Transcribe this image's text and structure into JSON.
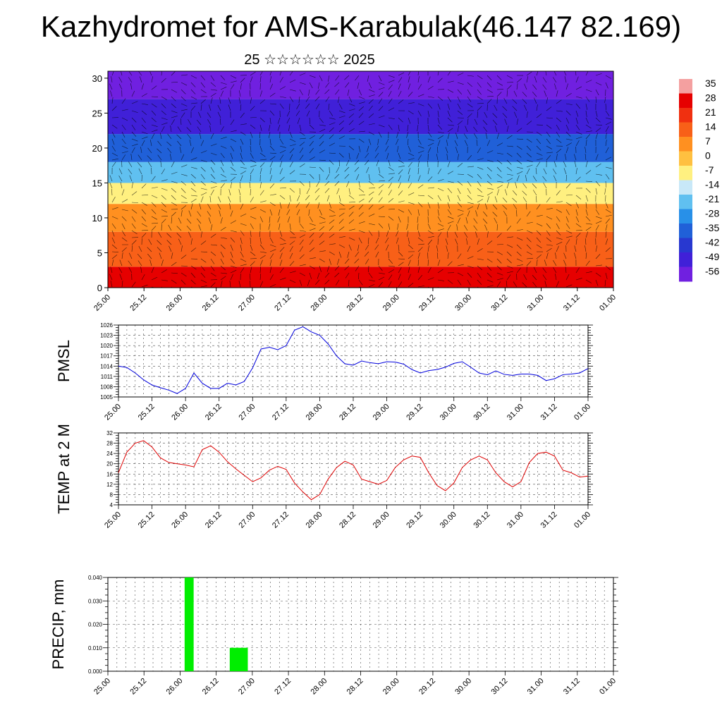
{
  "page": {
    "title": "Kazhydromet for AMS-Karabulak(46.147 82.169)",
    "subtitle": "25 ☆☆☆☆☆☆ 2025"
  },
  "colors": {
    "pmsl_line": "#0000dd",
    "temp_line": "#dd0000",
    "precip_bar": "#00ee00",
    "wind_barb": "#000000",
    "grid": "#000000"
  },
  "chart_data": [
    {
      "type": "heatmap",
      "name": "cross-section",
      "x_ticks": [
        "25.00",
        "25.12",
        "26.00",
        "26.12",
        "27.00",
        "27.12",
        "28.00",
        "28.12",
        "29.00",
        "29.12",
        "30.00",
        "30.12",
        "31.00",
        "31.12",
        "01.00"
      ],
      "y_ticks": [
        "0",
        "5",
        "10",
        "15",
        "20",
        "25",
        "30"
      ],
      "ylim": [
        0,
        31
      ],
      "colorbar_labels": [
        "35",
        "28",
        "21",
        "14",
        "7",
        "0",
        "-7",
        "-14",
        "-21",
        "-28",
        "-35",
        "-42",
        "-49",
        "-56"
      ],
      "colorbar_colors": [
        "#f4a0a0",
        "#e60000",
        "#f03010",
        "#f86018",
        "#ff9020",
        "#ffc040",
        "#fff080",
        "#c8e8f8",
        "#60c0f0",
        "#2890e8",
        "#2060d8",
        "#2838d0",
        "#4020d8",
        "#7020e0"
      ],
      "temperature_layers": [
        {
          "height_from": 0,
          "height_to": 3,
          "value": 28
        },
        {
          "height_from": 3,
          "height_to": 8,
          "value": 18
        },
        {
          "height_from": 8,
          "height_to": 12,
          "value": 7
        },
        {
          "height_from": 12,
          "height_to": 15,
          "value": -7
        },
        {
          "height_from": 15,
          "height_to": 18,
          "value": -21
        },
        {
          "height_from": 18,
          "height_to": 22,
          "value": -35
        },
        {
          "height_from": 22,
          "height_to": 27,
          "value": -49
        },
        {
          "height_from": 27,
          "height_to": 31,
          "value": -56
        }
      ]
    },
    {
      "type": "line",
      "name": "pmsl",
      "ylabel": "PMSL",
      "ylim": [
        1005,
        1026
      ],
      "y_ticks": [
        "1005",
        "1008",
        "1011",
        "1014",
        "1017",
        "1020",
        "1023",
        "1026"
      ],
      "x_ticks": [
        "25.00",
        "25.12",
        "26.00",
        "26.12",
        "27.00",
        "27.12",
        "28.00",
        "28.12",
        "29.00",
        "29.12",
        "30.00",
        "30.12",
        "31.00",
        "31.12",
        "01.00"
      ],
      "x_step_hours": 3,
      "values": [
        1014.0,
        1013.6,
        1012.0,
        1010.0,
        1008.5,
        1007.7,
        1007.0,
        1006.0,
        1007.5,
        1012.0,
        1009.0,
        1007.5,
        1007.5,
        1009.0,
        1008.5,
        1009.5,
        1013.5,
        1019.0,
        1019.5,
        1018.8,
        1020.0,
        1024.5,
        1025.5,
        1024.0,
        1023.0,
        1020.5,
        1017.0,
        1014.7,
        1014.3,
        1015.5,
        1015.0,
        1014.7,
        1015.3,
        1015.2,
        1014.6,
        1013.0,
        1012.0,
        1012.7,
        1013.0,
        1013.7,
        1014.8,
        1015.3,
        1013.7,
        1012.0,
        1011.5,
        1012.6,
        1011.6,
        1011.3,
        1011.7,
        1011.7,
        1011.3,
        1009.8,
        1010.3,
        1011.5,
        1011.7,
        1012.0,
        1013.3
      ]
    },
    {
      "type": "line",
      "name": "temp",
      "ylabel": "TEMP at 2 M",
      "ylim": [
        4,
        32
      ],
      "y_ticks": [
        "4",
        "8",
        "12",
        "16",
        "20",
        "24",
        "28",
        "32"
      ],
      "x_ticks": [
        "25.00",
        "25.12",
        "26.00",
        "26.12",
        "27.00",
        "27.12",
        "28.00",
        "28.12",
        "29.00",
        "29.12",
        "30.00",
        "30.12",
        "31.00",
        "31.12",
        "01.00"
      ],
      "x_step_hours": 3,
      "values": [
        16.5,
        24.5,
        28.0,
        29.0,
        26.5,
        22.3,
        20.5,
        20.0,
        19.5,
        18.8,
        25.5,
        27.0,
        24.5,
        20.8,
        18.0,
        15.5,
        13.0,
        14.5,
        17.5,
        19.0,
        17.8,
        12.5,
        9.0,
        6.0,
        8.0,
        14.0,
        18.5,
        21.0,
        19.5,
        14.0,
        13.0,
        12.0,
        13.5,
        18.5,
        21.5,
        23.0,
        22.5,
        16.5,
        11.5,
        9.5,
        12.5,
        18.5,
        21.5,
        23.0,
        21.5,
        16.5,
        13.0,
        11.0,
        13.0,
        20.5,
        24.0,
        24.5,
        23.0,
        17.5,
        16.5,
        14.8,
        15.2
      ]
    },
    {
      "type": "bar",
      "name": "precip",
      "ylabel": "PRECIP, mm",
      "ylim": [
        0,
        0.04
      ],
      "y_ticks": [
        "0.000",
        "0.010",
        "0.020",
        "0.030",
        "0.040"
      ],
      "x_ticks": [
        "25.00",
        "25.12",
        "26.00",
        "26.12",
        "27.00",
        "27.12",
        "28.00",
        "28.12",
        "29.00",
        "29.12",
        "30.00",
        "30.12",
        "31.00",
        "31.12",
        "01.00"
      ],
      "x_step_hours": 3,
      "bars": [
        {
          "step_index": 8,
          "width_steps": 1,
          "value": 0.04
        },
        {
          "step_index": 13,
          "width_steps": 2,
          "value": 0.01
        }
      ]
    }
  ]
}
